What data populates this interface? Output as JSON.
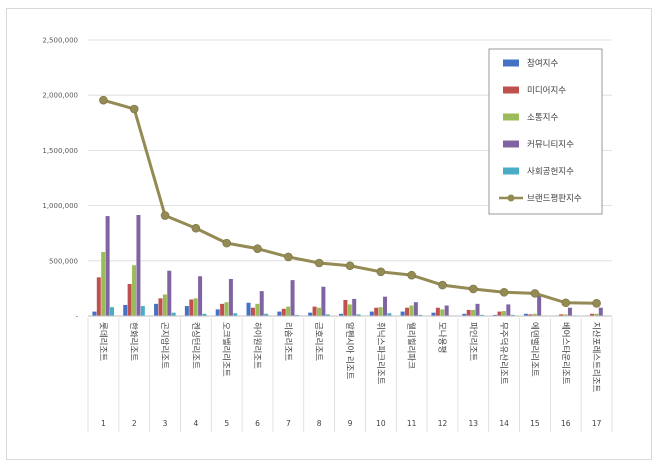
{
  "chart_data": {
    "type": "bar",
    "yticks": [
      "2,500,000",
      "2,000,000",
      "1,500,000",
      "1,000,000",
      "500,000",
      "-"
    ],
    "ylim": [
      0,
      2500000
    ],
    "numbers": [
      "1",
      "2",
      "3",
      "4",
      "5",
      "6",
      "7",
      "8",
      "9",
      "10",
      "11",
      "12",
      "13",
      "14",
      "15",
      "16",
      "17"
    ],
    "categories": [
      "롯데리조트",
      "한화리조트",
      "곤지암리조트",
      "켄싱턴리조트",
      "오크밸리리조트",
      "하이원리조트",
      "리솜리조트",
      "금호리조트",
      "알펜시아 리조트",
      "휘닉스파크리조트",
      "웰리힐리파크",
      "모나용평",
      "파인리조트",
      "무주덕유산리조트",
      "에덴밸리리조트",
      "베어스타운리조트",
      "지산포레스트리조트"
    ],
    "legend_position": "top-right",
    "series": [
      {
        "name": "참여지수",
        "color": "#4472C4",
        "values": [
          40000,
          100000,
          110000,
          90000,
          60000,
          120000,
          40000,
          30000,
          20000,
          40000,
          40000,
          30000,
          20000,
          10000,
          20000,
          5000,
          5000
        ]
      },
      {
        "name": "미디어지수",
        "color": "#C0504D",
        "values": [
          350000,
          290000,
          160000,
          150000,
          110000,
          75000,
          65000,
          85000,
          145000,
          75000,
          75000,
          75000,
          55000,
          40000,
          15000,
          15000,
          20000
        ]
      },
      {
        "name": "소통지수",
        "color": "#9BBB59",
        "values": [
          580000,
          460000,
          195000,
          160000,
          125000,
          110000,
          85000,
          75000,
          105000,
          80000,
          95000,
          60000,
          55000,
          45000,
          20000,
          15000,
          20000
        ]
      },
      {
        "name": "커뮤니티지수",
        "color": "#8064A2",
        "values": [
          905000,
          915000,
          410000,
          360000,
          335000,
          225000,
          325000,
          265000,
          155000,
          175000,
          125000,
          95000,
          110000,
          105000,
          195000,
          75000,
          75000
        ]
      },
      {
        "name": "사회공헌지수",
        "color": "#4BACC6",
        "values": [
          80000,
          90000,
          30000,
          20000,
          25000,
          20000,
          10000,
          15000,
          15000,
          25000,
          10000,
          5000,
          10000,
          10000,
          5000,
          5000,
          5000
        ]
      },
      {
        "name": "브랜드평판지수",
        "color": "#948A54",
        "type": "line",
        "values": [
          1955000,
          1875000,
          910000,
          795000,
          660000,
          610000,
          535000,
          480000,
          455000,
          400000,
          370000,
          280000,
          245000,
          215000,
          205000,
          120000,
          115000
        ]
      }
    ]
  }
}
